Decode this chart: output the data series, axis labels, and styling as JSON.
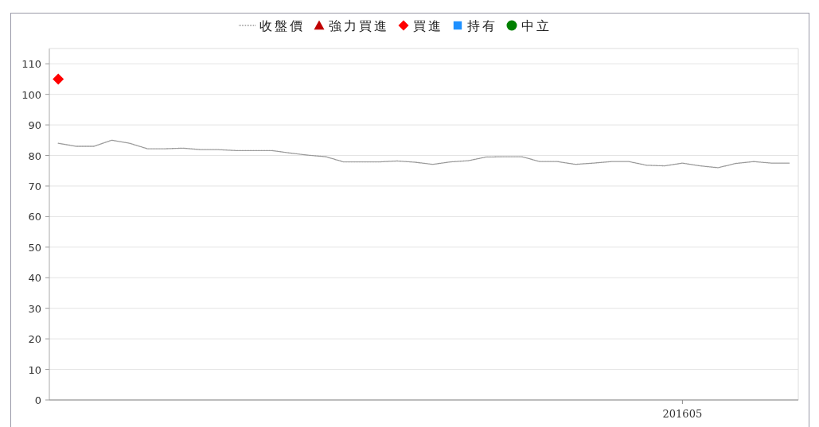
{
  "chart_data": {
    "type": "line",
    "categories": [
      null,
      null,
      null,
      null,
      null,
      null,
      null,
      null,
      null,
      null,
      null,
      null,
      null,
      null,
      null,
      null,
      null,
      null,
      null,
      null,
      null,
      null,
      null,
      null,
      null,
      null,
      null,
      null,
      null,
      null,
      null,
      null,
      null,
      null,
      null,
      "201605",
      null,
      null,
      null,
      null,
      null,
      null
    ],
    "series": [
      {
        "name": "收盤價",
        "color": "#999999",
        "line_style": "dotted",
        "marker": "none",
        "values": [
          84,
          83,
          83,
          85,
          84,
          82.2,
          82.2,
          82.4,
          81.9,
          81.9,
          81.6,
          81.6,
          81.6,
          80.8,
          80.1,
          79.6,
          77.9,
          77.9,
          77.9,
          78.2,
          77.8,
          77.1,
          77.9,
          78.3,
          79.5,
          79.6,
          79.6,
          78.0,
          78.0,
          77.1,
          77.5,
          78.0,
          78.0,
          76.8,
          76.6,
          77.5,
          76.6,
          76.0,
          77.4,
          78.0,
          77.5,
          77.5
        ]
      },
      {
        "name": "強力買進",
        "type": "scatter",
        "marker": "triangle",
        "color": "#c00000",
        "values": [
          null,
          null,
          null,
          null,
          null,
          null,
          null,
          null,
          null,
          null,
          null,
          null,
          null,
          null,
          null,
          null,
          null,
          null,
          null,
          null,
          null,
          null,
          null,
          null,
          null,
          null,
          null,
          null,
          null,
          null,
          null,
          null,
          null,
          null,
          null,
          null,
          null,
          null,
          null,
          null,
          null,
          null
        ]
      },
      {
        "name": "買進",
        "type": "scatter",
        "marker": "diamond",
        "color": "#ff0000",
        "values": [
          105,
          null,
          null,
          null,
          null,
          null,
          null,
          null,
          null,
          null,
          null,
          null,
          null,
          null,
          null,
          null,
          null,
          null,
          null,
          null,
          null,
          null,
          null,
          null,
          null,
          null,
          null,
          null,
          null,
          null,
          null,
          null,
          null,
          null,
          null,
          null,
          null,
          null,
          null,
          null,
          null,
          null
        ]
      },
      {
        "name": "持有",
        "type": "scatter",
        "marker": "square",
        "color": "#1e90ff",
        "values": [
          null,
          null,
          null,
          null,
          null,
          null,
          null,
          null,
          null,
          null,
          null,
          null,
          null,
          null,
          null,
          null,
          null,
          null,
          null,
          null,
          null,
          null,
          null,
          null,
          null,
          null,
          null,
          null,
          null,
          null,
          null,
          null,
          null,
          null,
          null,
          null,
          null,
          null,
          null,
          null,
          null,
          null
        ]
      },
      {
        "name": "中立",
        "type": "scatter",
        "marker": "circle",
        "color": "#008000",
        "values": [
          null,
          null,
          null,
          null,
          null,
          null,
          null,
          null,
          null,
          null,
          null,
          null,
          null,
          null,
          null,
          null,
          null,
          null,
          null,
          null,
          null,
          null,
          null,
          null,
          null,
          null,
          null,
          null,
          null,
          null,
          null,
          null,
          null,
          null,
          null,
          null,
          null,
          null,
          null,
          null,
          null,
          null
        ]
      }
    ],
    "ylim": [
      0,
      115
    ],
    "yticks": [
      0,
      10,
      20,
      30,
      40,
      50,
      60,
      70,
      80,
      90,
      100,
      110
    ],
    "grid": "y",
    "legend": "top"
  }
}
